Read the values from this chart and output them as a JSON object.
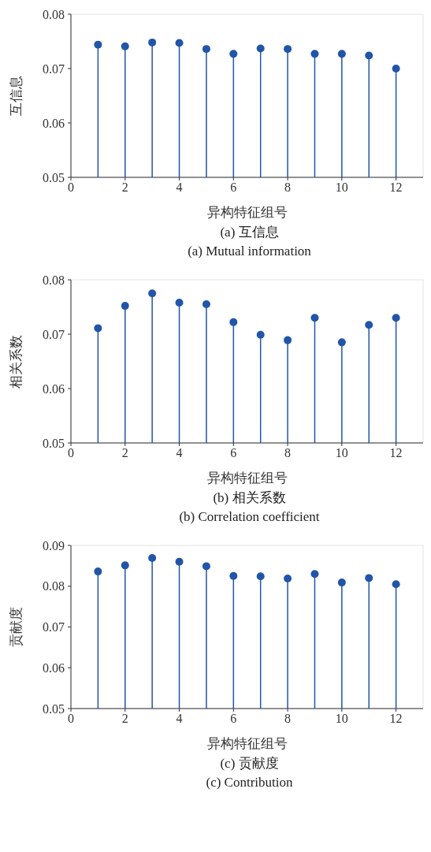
{
  "chart_data": [
    {
      "type": "lollipop",
      "xlabel": "异构特征组号",
      "ylabel": "互信息",
      "annotations": [
        "(a) 互信息",
        "(a) Mutual information"
      ],
      "x": [
        1,
        2,
        3,
        4,
        5,
        6,
        7,
        8,
        9,
        10,
        11,
        12
      ],
      "xlim": [
        0,
        13
      ],
      "xticks": [
        0,
        2,
        4,
        6,
        8,
        10,
        12
      ],
      "ylim": [
        0.05,
        0.08
      ],
      "yticks": [
        0.05,
        0.06,
        0.07,
        0.08
      ],
      "grid": true,
      "marker": "circle",
      "series": [
        {
          "color": "#2155a8",
          "values": [
            0.0744,
            0.0741,
            0.0748,
            0.0747,
            0.0736,
            0.0727,
            0.0737,
            0.0736,
            0.0727,
            0.0727,
            0.0724,
            0.07
          ]
        }
      ]
    },
    {
      "type": "lollipop",
      "xlabel": "异构特征组号",
      "ylabel": "相关系数",
      "annotations": [
        "(b) 相关系数",
        "(b) Correlation coefficient"
      ],
      "x": [
        1,
        2,
        3,
        4,
        5,
        6,
        7,
        8,
        9,
        10,
        11,
        12
      ],
      "xlim": [
        0,
        13
      ],
      "xticks": [
        0,
        2,
        4,
        6,
        8,
        10,
        12
      ],
      "ylim": [
        0.05,
        0.08
      ],
      "yticks": [
        0.05,
        0.06,
        0.07,
        0.08
      ],
      "grid": true,
      "marker": "circle",
      "series": [
        {
          "color": "#2155a8",
          "values": [
            0.0711,
            0.0752,
            0.0775,
            0.0758,
            0.0755,
            0.0722,
            0.0699,
            0.0689,
            0.073,
            0.0685,
            0.0717,
            0.073
          ]
        }
      ]
    },
    {
      "type": "lollipop",
      "xlabel": "异构特征组号",
      "ylabel": "贡献度",
      "annotations": [
        "(c) 贡献度",
        "(c) Contribution"
      ],
      "x": [
        1,
        2,
        3,
        4,
        5,
        6,
        7,
        8,
        9,
        10,
        11,
        12
      ],
      "xlim": [
        0,
        13
      ],
      "xticks": [
        0,
        2,
        4,
        6,
        8,
        10,
        12
      ],
      "ylim": [
        0.05,
        0.09
      ],
      "yticks": [
        0.05,
        0.06,
        0.07,
        0.08,
        0.09
      ],
      "grid": true,
      "marker": "circle",
      "series": [
        {
          "color": "#2155a8",
          "values": [
            0.0836,
            0.0851,
            0.0869,
            0.086,
            0.0849,
            0.0825,
            0.0824,
            0.0819,
            0.083,
            0.0809,
            0.082,
            0.0805
          ]
        }
      ]
    }
  ]
}
